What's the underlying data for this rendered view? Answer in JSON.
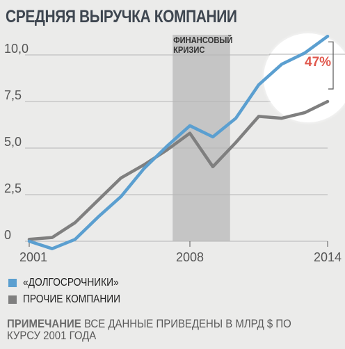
{
  "title": "СРЕДНЯЯ ВЫРУЧКА КОМПАНИИ",
  "shaded_label": [
    "ФИНАНСОВЫЙ",
    "КРИЗИС"
  ],
  "callout": "47%",
  "legend": [
    {
      "label": "«ДОЛГОСРОЧНИКИ»",
      "color": "#5b9fd0"
    },
    {
      "label": "ПРОЧИЕ КОМПАНИИ",
      "color": "#7f7f7f"
    }
  ],
  "note": {
    "label": "ПРИМЕЧАНИЕ",
    "text": "ВСЕ ДАННЫЕ ПРИВЕДЕНЫ В МЛРД $ ПО КУРСУ 2001 ГОДА"
  },
  "colors": {
    "long_term": "#5b9fd0",
    "others": "#7f7f7f",
    "callout": "#e0584d",
    "band": "#c5c5c5",
    "grid": "#b5b5b5"
  },
  "chart_data": {
    "type": "line",
    "title": "СРЕДНЯЯ ВЫРУЧКА КОМПАНИИ",
    "xlim": [
      2001,
      2014
    ],
    "ylim": [
      0,
      10
    ],
    "x_ticks": [
      {
        "value": 2001,
        "label": "2001"
      },
      {
        "value": 2008,
        "label": "2008"
      },
      {
        "value": 2014,
        "label": "2014"
      }
    ],
    "y_ticks": [
      {
        "value": 0,
        "label": "0"
      },
      {
        "value": 2.5,
        "label": "2,5"
      },
      {
        "value": 5,
        "label": "5,0"
      },
      {
        "value": 7.5,
        "label": "7,5"
      },
      {
        "value": 10,
        "label": "10,0"
      }
    ],
    "shaded_range": [
      2007.25,
      2009.75
    ],
    "grid": true,
    "legend_position": "bottom-left",
    "x": [
      2001,
      2002,
      2003,
      2004,
      2005,
      2006,
      2007,
      2008,
      2009,
      2010,
      2011,
      2012,
      2013,
      2014
    ],
    "series": [
      {
        "name": "«ДОЛГОСРОЧНИКИ»",
        "color": "#5b9fd0",
        "values": [
          0.0,
          -0.4,
          0.1,
          1.3,
          2.4,
          3.9,
          5.1,
          6.2,
          5.6,
          6.6,
          8.4,
          9.5,
          10.1,
          11.0
        ]
      },
      {
        "name": "ПРОЧИЕ КОМПАНИИ",
        "color": "#7f7f7f",
        "values": [
          0.1,
          0.2,
          1.0,
          2.2,
          3.4,
          4.1,
          4.9,
          5.8,
          4.0,
          5.3,
          6.7,
          6.6,
          6.9,
          7.5
        ]
      }
    ]
  }
}
